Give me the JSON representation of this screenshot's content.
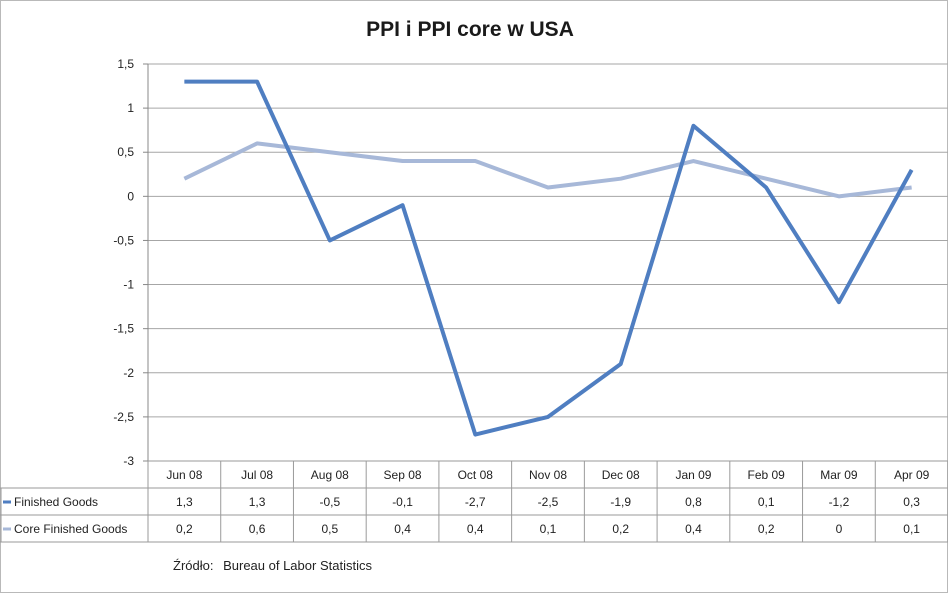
{
  "chart_data": {
    "type": "line",
    "title": "PPI i PPI core w USA",
    "categories": [
      "Jun 08",
      "Jul 08",
      "Aug 08",
      "Sep 08",
      "Oct 08",
      "Nov 08",
      "Dec 08",
      "Jan 09",
      "Feb 09",
      "Mar 09",
      "Apr 09"
    ],
    "series": [
      {
        "name": "Finished Goods",
        "color": "#4f7ec1",
        "values": [
          1.3,
          1.3,
          -0.5,
          -0.1,
          -2.7,
          -2.5,
          -1.9,
          0.8,
          0.1,
          -1.2,
          0.3
        ],
        "labels": [
          "1,3",
          "1,3",
          "-0,5",
          "-0,1",
          "-2,7",
          "-2,5",
          "-1,9",
          "0,8",
          "0,1",
          "-1,2",
          "0,3"
        ]
      },
      {
        "name": "Core Finished Goods",
        "color": "#a7b8d8",
        "values": [
          0.2,
          0.6,
          0.5,
          0.4,
          0.4,
          0.1,
          0.2,
          0.4,
          0.2,
          0.0,
          0.1
        ],
        "labels": [
          "0,2",
          "0,6",
          "0,5",
          "0,4",
          "0,4",
          "0,1",
          "0,2",
          "0,4",
          "0,2",
          "0",
          "0,1"
        ]
      }
    ],
    "ylim": [
      -3,
      1.5
    ],
    "yticks": [
      1.5,
      1,
      0.5,
      0,
      -0.5,
      -1,
      -1.5,
      -2,
      -2.5,
      -3
    ],
    "ytick_labels": [
      "1,5",
      "1",
      "0,5",
      "0",
      "-0,5",
      "-1",
      "-1,5",
      "-2",
      "-2,5",
      "-3"
    ],
    "grid": true,
    "data_table": true,
    "xlabel": "",
    "ylabel": ""
  },
  "source": {
    "label": "Źródło:",
    "text": "Bureau of Labor Statistics"
  }
}
